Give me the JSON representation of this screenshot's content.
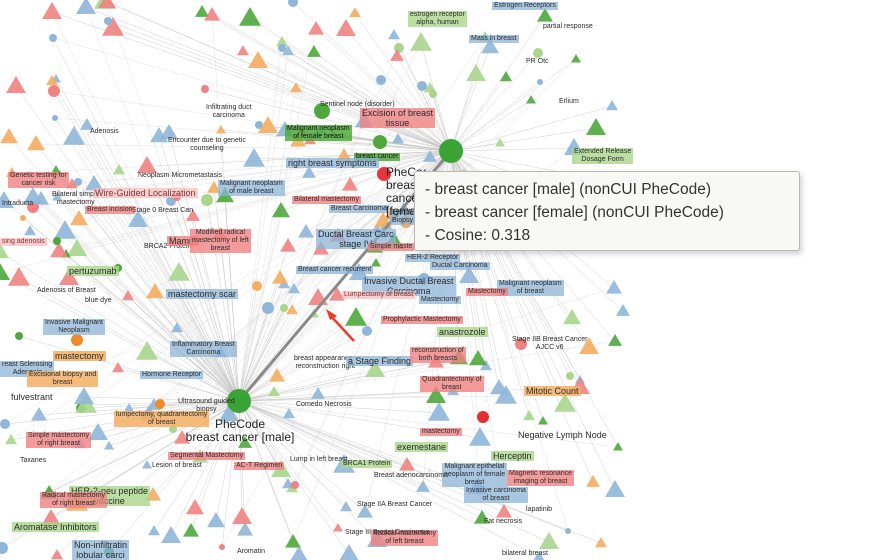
{
  "colors": {
    "blue": "#8fb6d9",
    "red": "#ef8383",
    "green": "#4ea83c",
    "light_green": "#a9d58c",
    "orange": "#f4ad62",
    "edge": "#bdbdbd",
    "hub": "#3aa336",
    "tooltip_bg": "#f8f8f4",
    "arrow": "#ef3b2c"
  },
  "hubs": [
    {
      "id": "hub-male",
      "line1": "PheCode",
      "line2": "breast cancer [male]"
    },
    {
      "id": "hub-female",
      "line1": "PheCode",
      "line2": "breast cancer [female]"
    }
  ],
  "tooltip": {
    "lines": [
      "- breast cancer [male] (nonCUI PheCode)",
      "- breast cancer [female] (nonCUI PheCode)",
      "- Cosine: 0.318"
    ]
  },
  "labels": {
    "estrogen_receptor": "estrogen receptor\nalpha, human",
    "estrogen_receptors": "Estrogen Receptors",
    "partial_response": "partial response",
    "mass_in_breast": "Mass in breast",
    "pr_otc": "PR Otc",
    "erlium": "Erlium",
    "extended_release": "Extended Release\nDosage Form",
    "sentinel_node": "Sentinel node (disorder)",
    "excision_breast": "Excision of breast\ntissue",
    "malignant_female": "Malignant neoplasm\nof female breast",
    "breast_cancer_green": "breast cancer",
    "right_breast_symptoms": "right breast symptoms",
    "adenosis": "Adenosis",
    "infiltrating_duct": "Infiltrating duct\ncarcinoma",
    "encounter_genetic": "Encounter due to genetic\ncounseling",
    "genetic_testing": "Genetic testing for\ncancer risk",
    "bilateral_simple": "Bilateral simple\nmastectomy",
    "intraductal": "Intraducta",
    "wire_guided": "Wire-Guided Localization",
    "neoplasm_micrometastasis": "Neoplasm Micrometastasis",
    "malignant_male": "Malignant neoplasm\nof male breast",
    "bilateral_mastectomy": "Bilateral mastectomy",
    "breast_carcinoma": "Breast Carcinoma",
    "breast_incision": "Breast incision",
    "stage0": "Stage 0 Breast Can",
    "lymph_biopsy": "Lymph\nBiopsy",
    "sclerosing_adenosis": "sing adenosis",
    "brca2": "BRCA2 Protein",
    "mamm": "Mamm",
    "modified_radical": "Modified radical\nmastectomy of left\nbreast",
    "ductal_breast_stage": "Ductal Breast Carc\nstage IV",
    "simple_maste": "Simple maste",
    "pertuzumab": "pertuzumab",
    "her2_receptor": "HER-2 Receptor",
    "ductal_carcinoma": "Ductal Carcinoma",
    "breast_cancer_recurrent": "Breast cancer recurrent",
    "invasive_ductal": "Invasive Ductal Breast\nCarcinoma",
    "malignant_neoplasm_breast": "Malignant neoplasm\nof breast",
    "mastectomy_red": "Mastectomy",
    "mastectomy_blue": "Mastectomy",
    "adenosis_breast": "Adenosis of Breast",
    "blue_dye": "blue dye",
    "mastectomy_scar": "mastectomy scar",
    "lumpectomy_breast": "Lumpectomy of breast",
    "invasive_malignant": "Invasive Malignant\nNeoplasm",
    "prophylactic_mastectomy": "Prophylactic Mastectomy",
    "anastrozole": "anastrozole",
    "stage_iib": "Stage IIB Breast Cancer\nAJCC v6",
    "mastectomy_orange": "mastectomy",
    "inflammatory_breast": "Inflammatory Breast\nCarcinoma",
    "breast_appearance": "breast appearance -\nreconstruction right",
    "stage_finding": "a Stage Finding",
    "reconstruction_both": "reconstruction of\nboth breasts",
    "breast_sclerosing": "reast Sclerosing\nAdenosis",
    "biopsy_excision": "Excisional biopsy and\nbreast",
    "hormone_receptor": "Hormone Receptor",
    "quadrantectomy": "Quadrantectomy of\nbreast",
    "mitotic_count": "Mitotic Count",
    "fulvestrant": "fulvestrant",
    "ultrasound_guided": "Ultrasound guided\nbiopsy",
    "lumpectomy_quadrantectomy": "lumpectomy, quadrantectomy\nof breast",
    "comedo_necrosis": "Comedo Necrosis",
    "simple_mastectomy_right": "Simple mastectomy\nof right breast",
    "negative_lymph": "Negative Lymph Node",
    "exemestane": "exemestane",
    "herceptin": "Herceptin",
    "taxanes": "Taxanes",
    "segmental_mastectomy": "Segmental Mastectomy",
    "lesion_breast": "Lesion of breast",
    "ac_regimen": "AC-T Regimen",
    "lump_left": "Lump in left breast",
    "brca1": "BRCA1 Protein",
    "malignant_epithelial": "Malignant epithelial\nneoplasm of female\nbreast",
    "magnetic_resonance": "Magnetic resonance\nimaging of breast",
    "her2_neu": "HER-2-neu peptide\nvaccine",
    "radical_mastectomy": "Radical mastectomy\nof right breast",
    "breast_adenocarcinoma": "Breast adenocarcinoma",
    "invasive_carcinoma": "Invasive carcinoma\nof breast",
    "lapatinib": "lapatinib",
    "aromatase": "Aromatase Inhibitors",
    "stage_iia": "Stage IIA Breast Cancer",
    "fat_necrosis": "Fat necrosis",
    "non_infiltrating": "Non-infiltratin\nlobular carci",
    "aromatin": "Aromatin",
    "radical_mastectomy_left": "Radical mastectomy\nof left breast",
    "bilateral_breast": "bilateral breast",
    "stage_iii": "Stage III Breast Carcinoma",
    "mastectomy_small": "mastectomy"
  }
}
